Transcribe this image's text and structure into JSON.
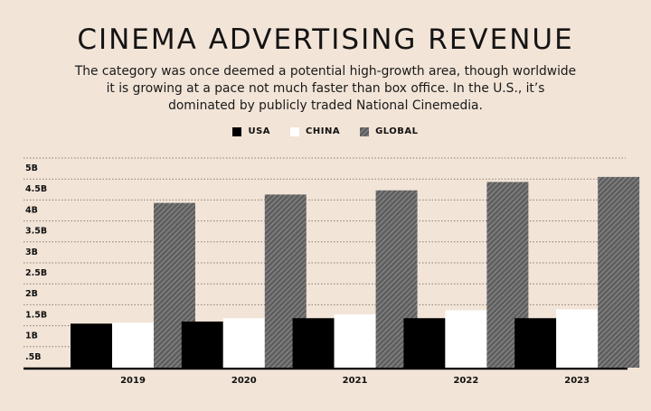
{
  "chart_data": {
    "type": "bar",
    "title": "CINEMA ADVERTISING REVENUE",
    "subtitle": "The category was once deemed a potential high-growth area, though worldwide it is growing at a pace not much faster than box office. In the U.S., it’s dominated by publicly traded National Cinemedia.",
    "categories": [
      "2019",
      "2020",
      "2021",
      "2022",
      "2023"
    ],
    "series": [
      {
        "name": "USA",
        "values": [
          1.05,
          1.1,
          1.18,
          1.18,
          1.18
        ]
      },
      {
        "name": "CHINA",
        "values": [
          1.07,
          1.18,
          1.27,
          1.37,
          1.39
        ]
      },
      {
        "name": "GLOBAL",
        "values": [
          3.93,
          4.13,
          4.23,
          4.43,
          4.55
        ]
      }
    ],
    "y_ticks": [
      ".5B",
      "1B",
      "1.5B",
      "2B",
      "2.5B",
      "3B",
      "3.5B",
      "4B",
      "4.5B",
      "5B"
    ],
    "ylim": [
      0,
      5
    ],
    "xlabel": "",
    "ylabel": "",
    "legend_position": "top-center",
    "grid": true,
    "colors": {
      "USA": "#000000",
      "CHINA": "#ffffff",
      "GLOBAL": "#6e6e6e",
      "background": "#f2e4d7"
    }
  }
}
